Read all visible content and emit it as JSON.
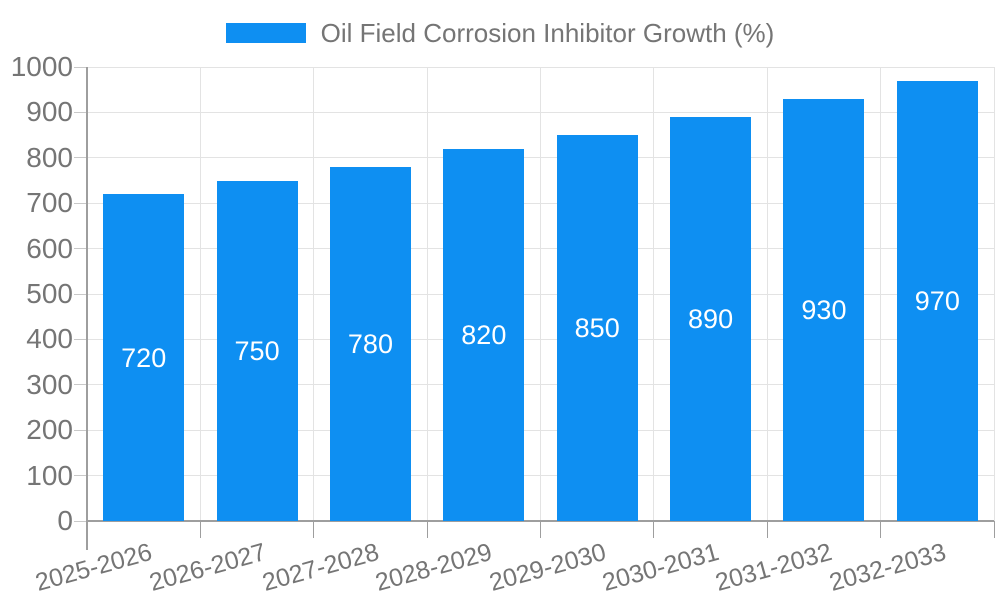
{
  "chart_data": {
    "type": "bar",
    "title": "Oil Field Corrosion Inhibitor Growth (%)",
    "categories": [
      "2025-2026",
      "2026-2027",
      "2027-2028",
      "2028-2029",
      "2029-2030",
      "2030-2031",
      "2031-2032",
      "2032-2033"
    ],
    "values": [
      720,
      750,
      780,
      820,
      850,
      890,
      930,
      970
    ],
    "value_labels": [
      "720",
      "750",
      "780",
      "820",
      "850",
      "890",
      "930",
      "970"
    ],
    "y_tick_labels": [
      "0",
      "100",
      "200",
      "300",
      "400",
      "500",
      "600",
      "700",
      "800",
      "900",
      "1000"
    ],
    "ylim": [
      0,
      1000
    ],
    "ytick_step": 100,
    "xlabel": "",
    "ylabel": "",
    "legend_position": "top-center",
    "grid": true,
    "colors": {
      "bar": "#0E8FF2",
      "value_label": "#FFFFFF",
      "axis_text": "#757575",
      "gridline": "#E3E3E3",
      "axis_line": "#9E9E9E",
      "background": "#FFFFFF"
    }
  }
}
